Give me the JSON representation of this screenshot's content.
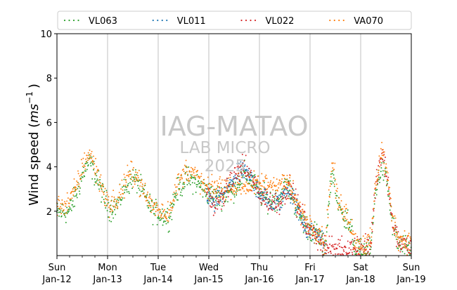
{
  "chart_data": {
    "type": "scatter",
    "title": "",
    "ylabel_main": "Wind speed (",
    "ylabel_unit": "ms",
    "ylabel_exp": "−1",
    "ylabel_close": ")",
    "xlabel": "",
    "xlim": [
      "2025-01-12",
      "2025-01-19"
    ],
    "ylim": [
      0,
      10
    ],
    "yticks": [
      2,
      4,
      6,
      8,
      10
    ],
    "grid": "vertical major",
    "legend_position": "top",
    "xticks": [
      {
        "day": "Sun",
        "date": "Jan-12"
      },
      {
        "day": "Mon",
        "date": "Jan-13"
      },
      {
        "day": "Tue",
        "date": "Jan-14"
      },
      {
        "day": "Wed",
        "date": "Jan-15"
      },
      {
        "day": "Thu",
        "date": "Jan-16"
      },
      {
        "day": "Fri",
        "date": "Jan-17"
      },
      {
        "day": "Sat",
        "date": "Jan-18"
      },
      {
        "day": "Sun",
        "date": "Jan-19"
      }
    ],
    "x_unit": "days since 2025-01-12",
    "series": [
      {
        "name": "VL063",
        "color": "#2ca02c",
        "profile": [
          [
            0.0,
            1.9
          ],
          [
            0.25,
            2.0
          ],
          [
            0.4,
            2.9
          ],
          [
            0.55,
            3.9
          ],
          [
            0.65,
            4.2
          ],
          [
            0.8,
            3.4
          ],
          [
            0.95,
            2.5
          ],
          [
            1.05,
            2.1
          ],
          [
            1.2,
            2.3
          ],
          [
            1.35,
            3.1
          ],
          [
            1.5,
            3.5
          ],
          [
            1.6,
            3.3
          ],
          [
            1.75,
            2.6
          ],
          [
            1.9,
            2.0
          ],
          [
            2.1,
            1.8
          ],
          [
            2.2,
            1.7
          ],
          [
            2.35,
            2.8
          ],
          [
            2.55,
            3.5
          ],
          [
            2.75,
            3.3
          ],
          [
            2.95,
            2.9
          ],
          [
            3.1,
            2.6
          ],
          [
            3.3,
            2.7
          ],
          [
            3.5,
            3.0
          ],
          [
            3.7,
            3.7
          ],
          [
            3.85,
            3.4
          ],
          [
            4.0,
            2.8
          ],
          [
            4.2,
            2.5
          ],
          [
            4.4,
            2.6
          ],
          [
            4.55,
            3.2
          ],
          [
            4.65,
            2.7
          ],
          [
            4.75,
            2.0
          ],
          [
            4.9,
            1.4
          ],
          [
            5.05,
            1.1
          ],
          [
            5.2,
            0.8
          ],
          [
            5.3,
            0.2
          ],
          [
            5.38,
            2.7
          ],
          [
            5.45,
            3.8
          ],
          [
            5.55,
            2.2
          ],
          [
            5.7,
            1.8
          ],
          [
            5.82,
            1.0
          ],
          [
            5.9,
            0.3
          ],
          [
            6.05,
            0.2
          ],
          [
            6.2,
            0.3
          ],
          [
            6.3,
            3.0
          ],
          [
            6.42,
            4.0
          ],
          [
            6.52,
            3.3
          ],
          [
            6.62,
            1.5
          ],
          [
            6.75,
            0.5
          ],
          [
            7.0,
            0.2
          ]
        ],
        "spread": 0.45
      },
      {
        "name": "VL011",
        "color": "#1f77b4",
        "profile": [
          [
            2.95,
            2.9
          ],
          [
            3.1,
            2.3
          ],
          [
            3.3,
            2.8
          ],
          [
            3.5,
            3.5
          ],
          [
            3.7,
            3.8
          ],
          [
            3.85,
            3.4
          ],
          [
            4.0,
            2.9
          ],
          [
            4.2,
            2.3
          ],
          [
            4.4,
            2.4
          ],
          [
            4.55,
            3.0
          ],
          [
            4.65,
            2.8
          ],
          [
            4.75,
            2.1
          ],
          [
            4.9,
            1.3
          ],
          [
            5.05,
            1.0
          ],
          [
            5.2,
            0.9
          ],
          [
            5.3,
            0.4
          ]
        ],
        "spread": 0.4
      },
      {
        "name": "VL022",
        "color": "#d62728",
        "profile": [
          [
            2.95,
            3.0
          ],
          [
            3.1,
            2.2
          ],
          [
            3.3,
            2.7
          ],
          [
            3.5,
            3.6
          ],
          [
            3.7,
            4.0
          ],
          [
            3.85,
            3.4
          ],
          [
            4.0,
            2.8
          ],
          [
            4.2,
            2.4
          ],
          [
            4.4,
            2.4
          ],
          [
            4.55,
            3.1
          ],
          [
            4.65,
            2.9
          ],
          [
            4.75,
            2.2
          ],
          [
            4.9,
            1.5
          ],
          [
            5.05,
            1.0
          ],
          [
            5.2,
            0.8
          ],
          [
            5.3,
            0.3
          ],
          [
            6.05,
            0.4
          ],
          [
            6.2,
            0.5
          ],
          [
            6.3,
            3.2
          ],
          [
            6.42,
            4.6
          ],
          [
            6.52,
            3.5
          ],
          [
            6.62,
            1.6
          ],
          [
            6.75,
            0.6
          ],
          [
            7.0,
            0.4
          ]
        ],
        "spread": 0.45
      },
      {
        "name": "VA070",
        "color": "#ff7f0e",
        "profile": [
          [
            0.0,
            2.2
          ],
          [
            0.25,
            2.4
          ],
          [
            0.4,
            3.2
          ],
          [
            0.55,
            4.3
          ],
          [
            0.65,
            4.6
          ],
          [
            0.8,
            3.7
          ],
          [
            0.95,
            2.7
          ],
          [
            1.05,
            2.2
          ],
          [
            1.2,
            2.5
          ],
          [
            1.35,
            3.3
          ],
          [
            1.5,
            3.8
          ],
          [
            1.6,
            3.5
          ],
          [
            1.75,
            2.7
          ],
          [
            1.9,
            2.2
          ],
          [
            2.1,
            2.0
          ],
          [
            2.2,
            1.9
          ],
          [
            2.35,
            3.0
          ],
          [
            2.55,
            3.9
          ],
          [
            2.75,
            3.6
          ],
          [
            2.95,
            3.0
          ],
          [
            4.55,
            3.3
          ],
          [
            4.65,
            2.9
          ],
          [
            4.75,
            2.2
          ],
          [
            4.9,
            1.7
          ],
          [
            5.05,
            1.3
          ],
          [
            5.2,
            1.0
          ],
          [
            5.3,
            0.5
          ],
          [
            5.38,
            2.9
          ],
          [
            5.45,
            4.2
          ],
          [
            5.55,
            2.4
          ],
          [
            5.7,
            2.0
          ],
          [
            5.82,
            1.3
          ],
          [
            5.9,
            0.6
          ],
          [
            6.05,
            0.5
          ],
          [
            6.2,
            0.6
          ],
          [
            6.3,
            3.3
          ],
          [
            6.42,
            4.8
          ],
          [
            6.52,
            3.7
          ],
          [
            6.62,
            1.8
          ],
          [
            6.75,
            0.8
          ],
          [
            7.0,
            0.6
          ]
        ],
        "spread": 0.45
      }
    ]
  },
  "watermark": {
    "line1": "IAG-MATAO",
    "line2": "LAB MICRO",
    "line3": "2025"
  }
}
